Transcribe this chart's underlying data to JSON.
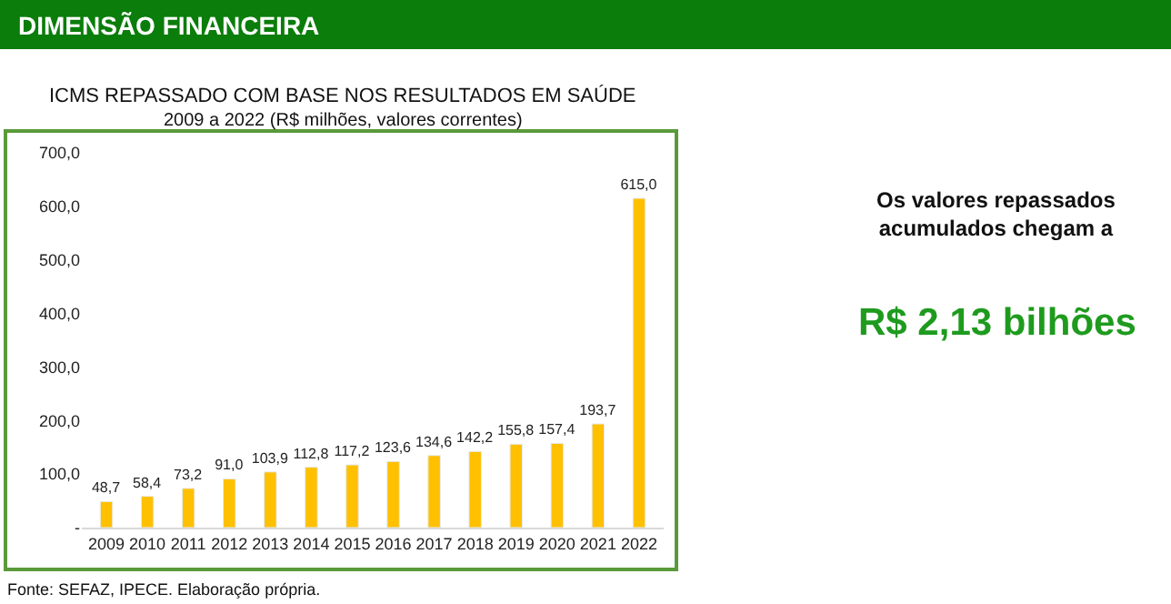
{
  "chart_data": {
    "type": "bar",
    "title": "ICMS REPASSADO COM BASE NOS RESULTADOS EM SAÚDE",
    "subtitle": "2009 a 2022 (R$ milhões, valores correntes)",
    "categories": [
      "2009",
      "2010",
      "2011",
      "2012",
      "2013",
      "2014",
      "2015",
      "2016",
      "2017",
      "2018",
      "2019",
      "2020",
      "2021",
      "2022"
    ],
    "values": [
      48.7,
      58.4,
      73.2,
      91.0,
      103.9,
      112.8,
      117.2,
      123.6,
      134.6,
      142.2,
      155.8,
      157.4,
      193.7,
      615.0
    ],
    "value_labels": [
      "48,7",
      "58,4",
      "73,2",
      "91,0",
      "103,9",
      "112,8",
      "117,2",
      "123,6",
      "134,6",
      "142,2",
      "155,8",
      "157,4",
      "193,7",
      "615,0"
    ],
    "color": "#ffc000",
    "ylim": [
      0,
      700
    ],
    "yticks": [
      {
        "value": 0,
        "label": "-"
      },
      {
        "value": 100,
        "label": "100,0"
      },
      {
        "value": 200,
        "label": "200,0"
      },
      {
        "value": 300,
        "label": "300,0"
      },
      {
        "value": 400,
        "label": "400,0"
      },
      {
        "value": 500,
        "label": "500,0"
      },
      {
        "value": 600,
        "label": "600,0"
      },
      {
        "value": 700,
        "label": "700,0"
      }
    ],
    "legend": false,
    "annotations": [
      "DIMENSÃO FINANCEIRA",
      "Os valores repassados acumulados chegam a",
      "R$ 2,13 bilhões",
      "Fonte: SEFAZ, IPECE. Elaboração própria."
    ]
  }
}
